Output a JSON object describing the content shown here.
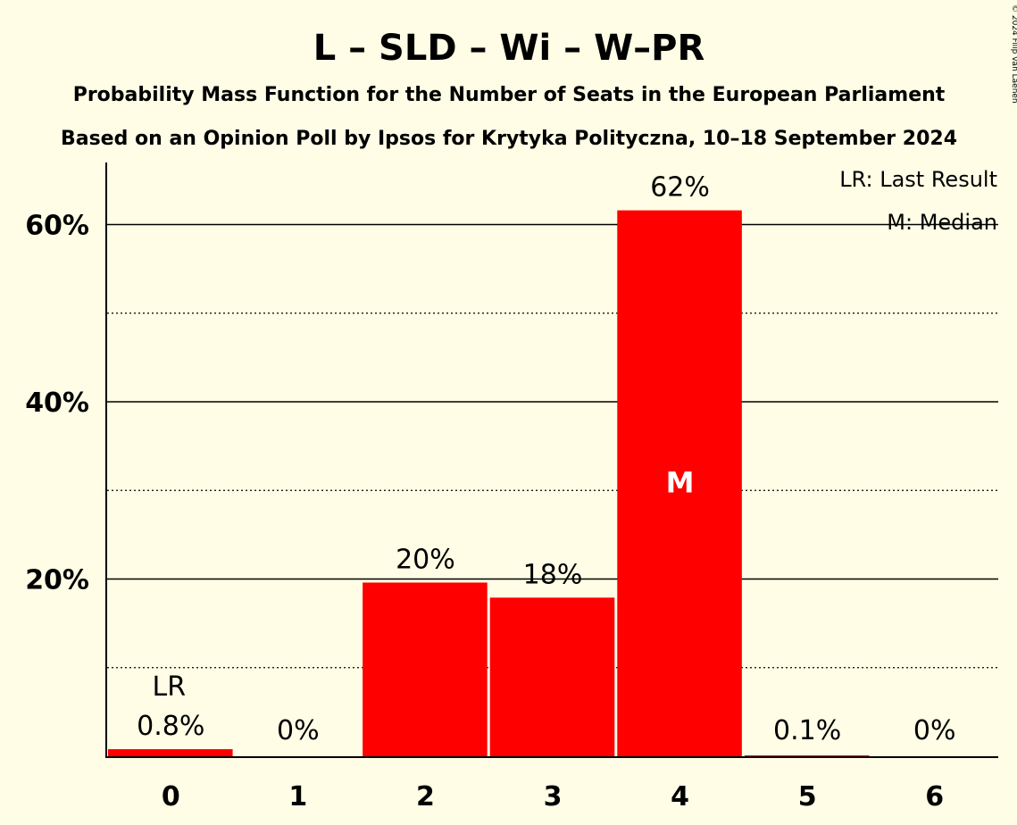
{
  "page": {
    "background": "#fffde6",
    "copyright": "© 2024 Filip van Laenen"
  },
  "chart_data": {
    "type": "bar",
    "title": "L – SLD – Wi – W–PR",
    "subtitle1": "Probability Mass Function for the Number of Seats in the European Parliament",
    "subtitle2": "Based on an Opinion Poll by Ipsos for Krytyka Polityczna, 10–18 September 2024",
    "categories": [
      "0",
      "1",
      "2",
      "3",
      "4",
      "5",
      "6"
    ],
    "values": [
      0.8,
      0,
      19.6,
      17.9,
      61.6,
      0.1,
      0
    ],
    "value_labels": [
      "0.8%",
      "0%",
      "20%",
      "18%",
      "62%",
      "0.1%",
      "0%"
    ],
    "ylim": [
      0,
      67
    ],
    "yticks": [
      20,
      40,
      60
    ],
    "ytick_labels": [
      "20%",
      "40%",
      "60%"
    ],
    "minor_gridlines": [
      10,
      30,
      50
    ],
    "bar_color": "#ff0000",
    "last_result_index": 0,
    "last_result_label": "LR",
    "median_index": 4,
    "median_label": "M",
    "legend": {
      "position": "top-right",
      "last_result": "LR: Last Result",
      "median": "M: Median"
    }
  }
}
